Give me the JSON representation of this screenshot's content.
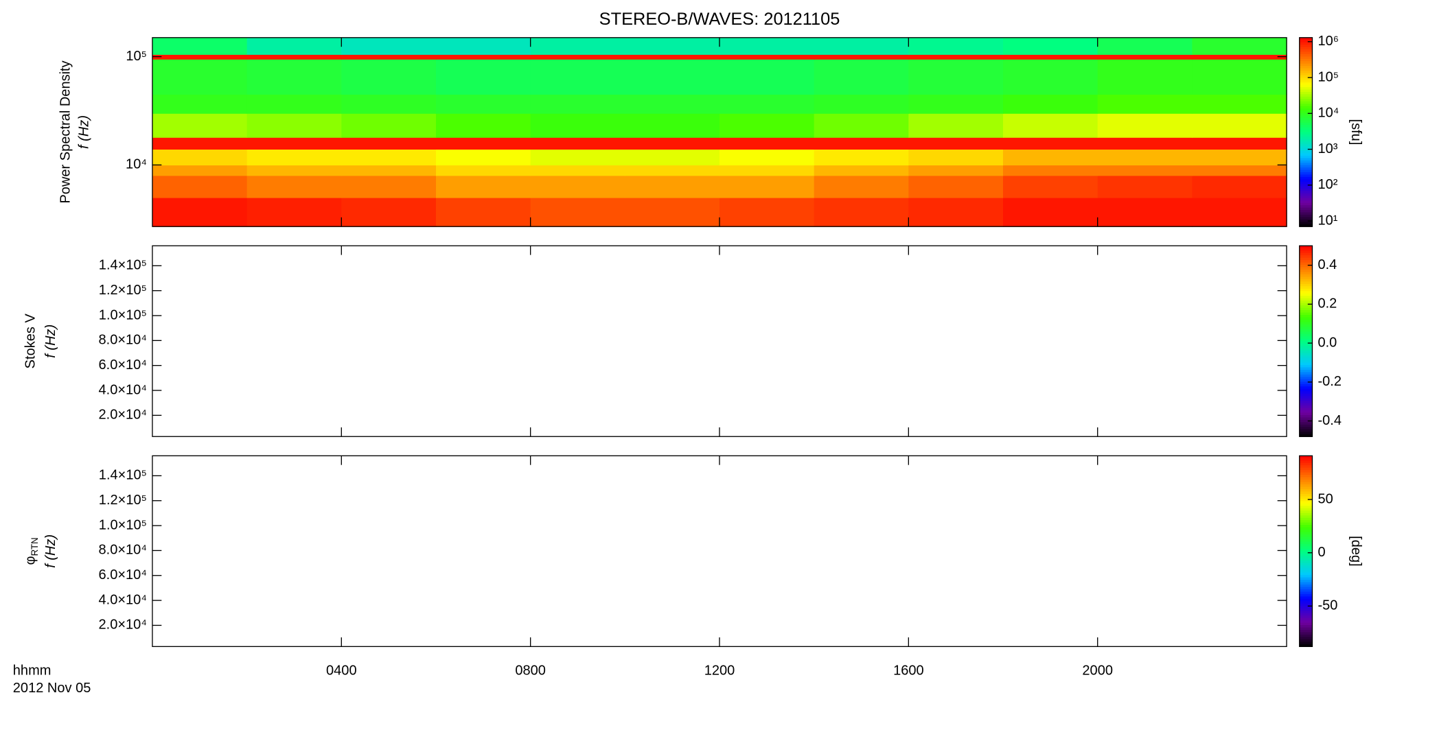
{
  "title": "STEREO-B/WAVES: 20121105",
  "x_label": "hhmm",
  "date": "2012 Nov 05",
  "chart_data": [
    {
      "type": "heatmap",
      "quantity": "Power Spectral Density",
      "ylabel": "f (Hz)",
      "ylog": true,
      "ylim": [
        2700,
        150000
      ],
      "yticks": [
        {
          "value": 10000,
          "label": "10⁴"
        },
        {
          "value": 100000,
          "label": "10⁵"
        }
      ],
      "xlim": [
        0,
        24
      ],
      "x_edges": [
        0,
        2,
        4,
        6,
        8,
        10,
        12,
        14,
        16,
        18,
        20,
        22,
        24
      ],
      "y_edges": [
        2700,
        5000,
        8000,
        10000,
        14000,
        18000,
        30000,
        45000,
        95000,
        105000,
        150000
      ],
      "z": [
        [
          1000000,
          900000,
          800000,
          600000,
          500000,
          500000,
          600000,
          700000,
          800000,
          1000000,
          1000000,
          1000000
        ],
        [
          400000,
          300000,
          300000,
          200000,
          200000,
          200000,
          200000,
          300000,
          400000,
          600000,
          700000,
          800000
        ],
        [
          200000,
          150000,
          150000,
          100000,
          100000,
          100000,
          100000,
          150000,
          200000,
          300000,
          300000,
          300000
        ],
        [
          100000,
          80000,
          80000,
          60000,
          50000,
          50000,
          60000,
          80000,
          100000,
          150000,
          150000,
          150000
        ],
        [
          1000000,
          1000000,
          1000000,
          1000000,
          1000000,
          1000000,
          1000000,
          1000000,
          1000000,
          1000000,
          1000000,
          1000000
        ],
        [
          30000,
          25000,
          20000,
          15000,
          12000,
          12000,
          15000,
          20000,
          30000,
          40000,
          50000,
          50000
        ],
        [
          10000,
          10000,
          9000,
          8000,
          8000,
          8000,
          8000,
          9000,
          10000,
          12000,
          15000,
          15000
        ],
        [
          8000,
          7000,
          6000,
          5000,
          5000,
          5000,
          5000,
          6000,
          7000,
          8000,
          10000,
          10000
        ],
        [
          1000000,
          1000000,
          1000000,
          1000000,
          1000000,
          1000000,
          1000000,
          1000000,
          1000000,
          1000000,
          1000000,
          1000000
        ],
        [
          4000,
          2000,
          1500,
          1500,
          2000,
          2000,
          2000,
          2000,
          2500,
          3000,
          5000,
          8000
        ]
      ],
      "zlog": true,
      "zlim": [
        7,
        1300000
      ],
      "zticks": [
        {
          "value": 10,
          "label": "10¹"
        },
        {
          "value": 100,
          "label": "10²"
        },
        {
          "value": 1000,
          "label": "10³"
        },
        {
          "value": 10000,
          "label": "10⁴"
        },
        {
          "value": 100000,
          "label": "10⁵"
        },
        {
          "value": 1000000,
          "label": "10⁶"
        }
      ],
      "colorbar_label": "[sfu]",
      "colormap": [
        "#000000",
        "#7000a0",
        "#0000ff",
        "#00c8ff",
        "#00ff80",
        "#40ff00",
        "#ffff00",
        "#ff8000",
        "#ff0000"
      ]
    },
    {
      "type": "heatmap",
      "quantity": "Stokes V",
      "ylabel": "f (Hz)",
      "ylog": false,
      "ylim": [
        3000,
        156000
      ],
      "yticks": [
        {
          "value": 20000,
          "label": "2.0×10⁴"
        },
        {
          "value": 40000,
          "label": "4.0×10⁴"
        },
        {
          "value": 60000,
          "label": "6.0×10⁴"
        },
        {
          "value": 80000,
          "label": "8.0×10⁴"
        },
        {
          "value": 100000,
          "label": "1.0×10⁵"
        },
        {
          "value": 120000,
          "label": "1.2×10⁵"
        },
        {
          "value": 140000,
          "label": "1.4×10⁵"
        }
      ],
      "xlim": [
        0,
        24
      ],
      "zlog": false,
      "zlim": [
        -0.48,
        0.5
      ],
      "zticks": [
        -0.4,
        -0.2,
        {
          "value": 0,
          "label": "0.0"
        },
        0.2,
        0.4
      ],
      "colormap": [
        "#000000",
        "#7000a0",
        "#0000ff",
        "#00c8ff",
        "#00ff80",
        "#40ff00",
        "#ffff00",
        "#ff8000",
        "#ff0000"
      ]
    },
    {
      "type": "heatmap",
      "quantity": "φ",
      "quantity_sub": "RTN",
      "ylabel": "f (Hz)",
      "ylog": false,
      "ylim": [
        3000,
        156000
      ],
      "yticks": [
        {
          "value": 20000,
          "label": "2.0×10⁴"
        },
        {
          "value": 40000,
          "label": "4.0×10⁴"
        },
        {
          "value": 60000,
          "label": "6.0×10⁴"
        },
        {
          "value": 80000,
          "label": "8.0×10⁴"
        },
        {
          "value": 100000,
          "label": "1.0×10⁵"
        },
        {
          "value": 120000,
          "label": "1.2×10⁵"
        },
        {
          "value": 140000,
          "label": "1.4×10⁵"
        }
      ],
      "xlim": [
        0,
        24
      ],
      "xticks": [
        {
          "value": 4,
          "label": "0400"
        },
        {
          "value": 8,
          "label": "0800"
        },
        {
          "value": 12,
          "label": "1200"
        },
        {
          "value": 16,
          "label": "1600"
        },
        {
          "value": 20,
          "label": "2000"
        }
      ],
      "zlog": false,
      "zlim": [
        -88,
        91
      ],
      "zticks": [
        -50,
        0,
        50
      ],
      "colorbar_label": "[deg]",
      "colormap": [
        "#000000",
        "#7000a0",
        "#0000ff",
        "#00c8ff",
        "#00ff80",
        "#40ff00",
        "#ffff00",
        "#ff8000",
        "#ff0000"
      ]
    }
  ]
}
